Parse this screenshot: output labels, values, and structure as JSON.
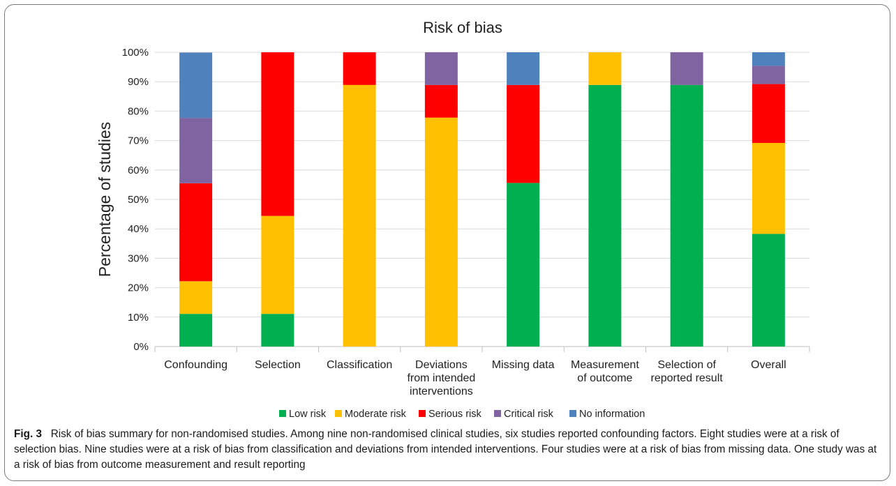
{
  "chart_data": {
    "type": "bar",
    "stacked": true,
    "percent_stacked": true,
    "title": "Risk of bias",
    "xlabel": "",
    "ylabel": "Percentage of studies",
    "ylim": [
      0,
      100
    ],
    "yticks": [
      "0%",
      "10%",
      "20%",
      "30%",
      "40%",
      "50%",
      "60%",
      "70%",
      "80%",
      "90%",
      "100%"
    ],
    "grid": true,
    "legend_position": "bottom",
    "categories": [
      [
        "Confounding"
      ],
      [
        "Selection"
      ],
      [
        "Classification"
      ],
      [
        "Deviations",
        "from intended",
        "interventions"
      ],
      [
        "Missing data"
      ],
      [
        "Measurement",
        "of outcome"
      ],
      [
        "Selection of",
        "reported result"
      ],
      [
        "Overall"
      ]
    ],
    "series": [
      {
        "name": "Low risk",
        "color": "#00b050",
        "values": [
          11.1,
          11.1,
          0,
          0,
          55.6,
          88.9,
          88.9,
          38.3
        ]
      },
      {
        "name": "Moderate risk",
        "color": "#ffc000",
        "values": [
          11.1,
          33.3,
          88.9,
          77.8,
          0,
          11.1,
          0,
          30.9
        ]
      },
      {
        "name": "Serious risk",
        "color": "#ff0000",
        "values": [
          33.3,
          55.6,
          11.1,
          11.1,
          33.3,
          0,
          0,
          20.0
        ]
      },
      {
        "name": "Critical risk",
        "color": "#8064a2",
        "values": [
          22.2,
          0,
          0,
          11.1,
          0,
          0,
          11.1,
          6.2
        ]
      },
      {
        "name": "No information",
        "color": "#4f81bd",
        "values": [
          22.2,
          0,
          0,
          0,
          11.1,
          0,
          0,
          4.6
        ]
      }
    ]
  },
  "caption": {
    "label": "Fig. 3",
    "text": "Risk of bias summary for non-randomised studies. Among nine non-randomised clinical studies, six studies reported confounding factors. Eight studies were at a risk of selection bias. Nine studies were at a risk of bias from classification and deviations from intended interventions. Four studies were at a risk of bias from missing data. One study was at a risk of bias from outcome measurement and result reporting"
  }
}
